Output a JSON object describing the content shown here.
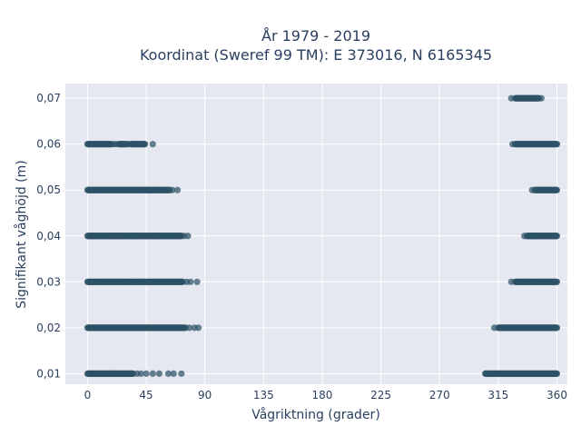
{
  "chart_data": {
    "type": "scatter",
    "title_line1": "År 1979 - 2019",
    "title_line2": "Koordinat (Sweref 99 TM): E 373016, N 6165345",
    "xlabel": "Vågriktning (grader)",
    "ylabel": "Signifikant våghöjd (m)",
    "xlim": [
      -17,
      368
    ],
    "ylim": [
      0.0077,
      0.0732
    ],
    "x_ticks": [
      0,
      45,
      90,
      135,
      180,
      225,
      270,
      315,
      360
    ],
    "x_tick_labels": [
      "0",
      "45",
      "90",
      "135",
      "180",
      "225",
      "270",
      "315",
      "360"
    ],
    "y_ticks": [
      0.01,
      0.02,
      0.03,
      0.04,
      0.05,
      0.06,
      0.07
    ],
    "y_tick_labels": [
      "0,01",
      "0,02",
      "0,03",
      "0,04",
      "0,05",
      "0,06",
      "0,07"
    ],
    "grid": true,
    "colors": {
      "marker": "#2e5266",
      "plot_background": "#e5e8f0",
      "grid": "#ffffff",
      "text": "#2a3f5f"
    },
    "series": [
      {
        "y": 0.01,
        "segments": [
          [
            0,
            35
          ],
          [
            305,
            360
          ]
        ],
        "outliers": [
          38,
          41,
          45,
          50,
          55,
          62,
          66,
          72
        ]
      },
      {
        "y": 0.02,
        "segments": [
          [
            0,
            75
          ],
          [
            315,
            360
          ]
        ],
        "outliers": [
          78,
          82,
          85,
          312
        ]
      },
      {
        "y": 0.03,
        "segments": [
          [
            0,
            73
          ],
          [
            328,
            360
          ]
        ],
        "outliers": [
          76,
          79,
          84,
          325
        ]
      },
      {
        "y": 0.04,
        "segments": [
          [
            0,
            72
          ],
          [
            337,
            360
          ]
        ],
        "outliers": [
          74,
          77,
          335
        ]
      },
      {
        "y": 0.05,
        "segments": [
          [
            0,
            63
          ],
          [
            343,
            360
          ]
        ],
        "outliers": [
          65,
          69,
          341
        ]
      },
      {
        "y": 0.06,
        "segments": [
          [
            0,
            18
          ],
          [
            24,
            30
          ],
          [
            33,
            44
          ],
          [
            328,
            360
          ]
        ],
        "outliers": [
          20,
          22,
          31,
          50,
          326
        ]
      },
      {
        "y": 0.07,
        "segments": [
          [
            328,
            346
          ]
        ],
        "outliers": [
          325,
          348
        ]
      }
    ]
  }
}
